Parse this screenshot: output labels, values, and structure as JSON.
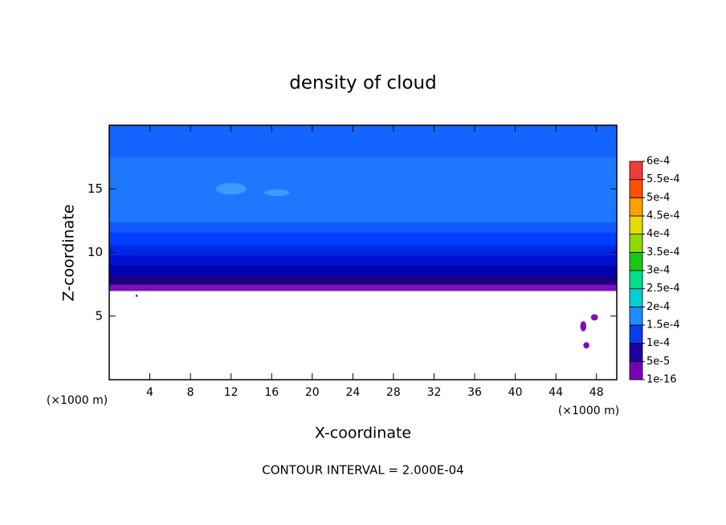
{
  "chart_data": {
    "type": "contour",
    "title": "density of cloud",
    "x_label": "X-coordinate",
    "y_label": "Z-coordinate",
    "x_unit": "(×1000 m)",
    "y_unit": "(×1000 m)",
    "footer": "CONTOUR INTERVAL = 2.000E-04",
    "xlim": [
      0,
      50
    ],
    "xticks": [
      4,
      8,
      12,
      16,
      20,
      24,
      28,
      32,
      36,
      40,
      44,
      48
    ],
    "ylim": [
      0,
      20
    ],
    "yticks": [
      5,
      10,
      15
    ],
    "layers": [
      {
        "zlim": [
          7,
          7.5
        ],
        "color": "#7a10b8"
      },
      {
        "zlim": [
          7.5,
          8.2
        ],
        "color": "#1a0080"
      },
      {
        "zlim": [
          8.2,
          9
        ],
        "color": "#0000b0"
      },
      {
        "zlim": [
          9,
          9.8
        ],
        "color": "#0010d0"
      },
      {
        "zlim": [
          9.8,
          10.6
        ],
        "color": "#0028e8"
      },
      {
        "zlim": [
          10.6,
          11.6
        ],
        "color": "#0040ff"
      },
      {
        "zlim": [
          11.6,
          12.4
        ],
        "color": "#1058ff"
      },
      {
        "zlim": [
          12.4,
          17.5
        ],
        "color": "#1e78ff"
      },
      {
        "zlim": [
          17.5,
          20
        ],
        "color": "#1464ff"
      }
    ],
    "patches": [
      {
        "x": 12,
        "z": 15,
        "w": 3,
        "h": 0.9,
        "color": "#3c9cff"
      },
      {
        "x": 16.5,
        "z": 14.7,
        "w": 2.5,
        "h": 0.5,
        "color": "#3c9cff"
      },
      {
        "x": 46.7,
        "z": 4.2,
        "w": 0.6,
        "h": 0.8,
        "color": "#7a10b8"
      },
      {
        "x": 47.8,
        "z": 4.9,
        "w": 0.7,
        "h": 0.5,
        "color": "#7a10b8"
      },
      {
        "x": 47,
        "z": 2.7,
        "w": 0.6,
        "h": 0.5,
        "color": "#7a10b8"
      },
      {
        "x": 2.7,
        "z": 6.6,
        "w": 0.2,
        "h": 0.2,
        "color": "#7a10b8"
      }
    ],
    "colorbar": {
      "ticks": [
        {
          "value": 1e-16,
          "label": "1e-16"
        },
        {
          "value": 5e-05,
          "label": "5e-5"
        },
        {
          "value": 0.0001,
          "label": "1e-4"
        },
        {
          "value": 0.00015,
          "label": "1.5e-4"
        },
        {
          "value": 0.0002,
          "label": "2e-4"
        },
        {
          "value": 0.00025,
          "label": "2.5e-4"
        },
        {
          "value": 0.0003,
          "label": "3e-4"
        },
        {
          "value": 0.00035,
          "label": "3.5e-4"
        },
        {
          "value": 0.0004,
          "label": "4e-4"
        },
        {
          "value": 0.00045,
          "label": "4.5e-4"
        },
        {
          "value": 0.0005,
          "label": "5e-4"
        },
        {
          "value": 0.00055,
          "label": "5.5e-4"
        },
        {
          "value": 0.0006,
          "label": "6e-4"
        }
      ],
      "colors": [
        "#7800b4",
        "#1e00a0",
        "#0a3cf0",
        "#1e8cff",
        "#00d2d2",
        "#00e08c",
        "#18c818",
        "#8cdc00",
        "#e6dc00",
        "#ffa000",
        "#ff5000",
        "#f03c3c"
      ]
    }
  }
}
